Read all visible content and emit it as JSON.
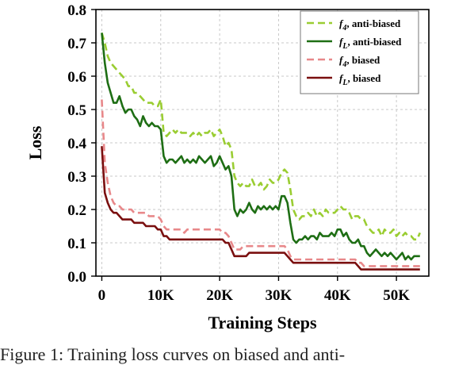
{
  "chart_data": {
    "type": "line",
    "xlabel": "Training Steps",
    "ylabel": "Loss",
    "xlim": [
      -1000,
      55500
    ],
    "ylim": [
      0,
      0.8
    ],
    "xticks": [
      0,
      10000,
      20000,
      30000,
      40000,
      50000
    ],
    "xtick_labels": [
      "0",
      "10K",
      "20K",
      "30K",
      "40K",
      "50K"
    ],
    "yticks": [
      0.0,
      0.1,
      0.2,
      0.3,
      0.4,
      0.5,
      0.6,
      0.7,
      0.8
    ],
    "ytick_labels": [
      "0.0",
      "0.1",
      "0.2",
      "0.3",
      "0.4",
      "0.5",
      "0.6",
      "0.7",
      "0.8"
    ],
    "grid": true,
    "legend_position": "top-right",
    "series": [
      {
        "name": "f4, anti-biased",
        "legend_italic": "f",
        "legend_sub": "4",
        "legend_rest": ", anti-biased",
        "color": "#9acd32",
        "dash": true,
        "x": [
          0,
          500,
          1000,
          1500,
          2000,
          2500,
          3000,
          3500,
          4000,
          4500,
          5000,
          5500,
          6000,
          6500,
          7000,
          7500,
          8000,
          8500,
          9000,
          9500,
          10000,
          10500,
          11000,
          11500,
          12000,
          12500,
          13000,
          13500,
          14000,
          14500,
          15000,
          15500,
          16000,
          16500,
          17000,
          17500,
          18000,
          18500,
          19000,
          19500,
          20000,
          20500,
          21000,
          21500,
          22000,
          22500,
          23000,
          23500,
          24000,
          24500,
          25000,
          25500,
          26000,
          26500,
          27000,
          27500,
          28000,
          28500,
          29000,
          29500,
          30000,
          30500,
          31000,
          31500,
          32000,
          32500,
          33000,
          33500,
          34000,
          34500,
          35000,
          35500,
          36000,
          36500,
          37000,
          37500,
          38000,
          38500,
          39000,
          39500,
          40000,
          40500,
          41000,
          41500,
          42000,
          42500,
          43000,
          43500,
          44000,
          44500,
          45000,
          45500,
          46000,
          46500,
          47000,
          47500,
          48000,
          48500,
          49000,
          49500,
          50000,
          50500,
          51000,
          51500,
          52000,
          52500,
          53000,
          53500,
          54000
        ],
        "y": [
          0.73,
          0.7,
          0.66,
          0.64,
          0.63,
          0.62,
          0.61,
          0.6,
          0.59,
          0.57,
          0.57,
          0.55,
          0.55,
          0.54,
          0.53,
          0.52,
          0.52,
          0.52,
          0.51,
          0.51,
          0.53,
          0.43,
          0.42,
          0.43,
          0.44,
          0.43,
          0.44,
          0.43,
          0.43,
          0.43,
          0.42,
          0.43,
          0.42,
          0.43,
          0.42,
          0.43,
          0.43,
          0.44,
          0.42,
          0.43,
          0.44,
          0.42,
          0.39,
          0.4,
          0.38,
          0.3,
          0.28,
          0.27,
          0.28,
          0.27,
          0.27,
          0.29,
          0.27,
          0.27,
          0.28,
          0.26,
          0.27,
          0.29,
          0.28,
          0.28,
          0.29,
          0.31,
          0.32,
          0.31,
          0.26,
          0.2,
          0.18,
          0.17,
          0.18,
          0.18,
          0.19,
          0.18,
          0.2,
          0.18,
          0.19,
          0.18,
          0.2,
          0.19,
          0.19,
          0.19,
          0.2,
          0.21,
          0.2,
          0.2,
          0.19,
          0.17,
          0.18,
          0.18,
          0.17,
          0.17,
          0.15,
          0.14,
          0.13,
          0.13,
          0.14,
          0.12,
          0.14,
          0.13,
          0.13,
          0.14,
          0.12,
          0.13,
          0.12,
          0.13,
          0.12,
          0.12,
          0.11,
          0.11,
          0.13
        ]
      },
      {
        "name": "fL, anti-biased",
        "legend_italic": "f",
        "legend_sub": "L",
        "legend_rest": ", anti-biased",
        "color": "#1e6e14",
        "dash": false,
        "x": [
          0,
          500,
          1000,
          1500,
          2000,
          2500,
          3000,
          3500,
          4000,
          4500,
          5000,
          5500,
          6000,
          6500,
          7000,
          7500,
          8000,
          8500,
          9000,
          9500,
          10000,
          10500,
          11000,
          11500,
          12000,
          12500,
          13000,
          13500,
          14000,
          14500,
          15000,
          15500,
          16000,
          16500,
          17000,
          17500,
          18000,
          18500,
          19000,
          19500,
          20000,
          20500,
          21000,
          21500,
          22000,
          22500,
          23000,
          23500,
          24000,
          24500,
          25000,
          25500,
          26000,
          26500,
          27000,
          27500,
          28000,
          28500,
          29000,
          29500,
          30000,
          30500,
          31000,
          31500,
          32000,
          32500,
          33000,
          33500,
          34000,
          34500,
          35000,
          35500,
          36000,
          36500,
          37000,
          37500,
          38000,
          38500,
          39000,
          39500,
          40000,
          40500,
          41000,
          41500,
          42000,
          42500,
          43000,
          43500,
          44000,
          44500,
          45000,
          45500,
          46000,
          46500,
          47000,
          47500,
          48000,
          48500,
          49000,
          49500,
          50000,
          50500,
          51000,
          51500,
          52000,
          52500,
          53000,
          53500,
          54000
        ],
        "y": [
          0.73,
          0.64,
          0.58,
          0.55,
          0.52,
          0.52,
          0.54,
          0.51,
          0.49,
          0.5,
          0.5,
          0.48,
          0.47,
          0.45,
          0.48,
          0.46,
          0.45,
          0.46,
          0.45,
          0.45,
          0.44,
          0.36,
          0.34,
          0.35,
          0.35,
          0.34,
          0.35,
          0.36,
          0.34,
          0.35,
          0.34,
          0.35,
          0.34,
          0.36,
          0.35,
          0.34,
          0.35,
          0.36,
          0.33,
          0.34,
          0.36,
          0.34,
          0.32,
          0.33,
          0.3,
          0.2,
          0.18,
          0.2,
          0.19,
          0.2,
          0.22,
          0.2,
          0.19,
          0.21,
          0.2,
          0.21,
          0.2,
          0.21,
          0.2,
          0.21,
          0.2,
          0.24,
          0.24,
          0.22,
          0.16,
          0.11,
          0.1,
          0.11,
          0.11,
          0.12,
          0.11,
          0.12,
          0.12,
          0.11,
          0.13,
          0.12,
          0.12,
          0.12,
          0.13,
          0.12,
          0.14,
          0.14,
          0.12,
          0.13,
          0.11,
          0.1,
          0.1,
          0.11,
          0.09,
          0.09,
          0.07,
          0.06,
          0.07,
          0.08,
          0.07,
          0.06,
          0.07,
          0.06,
          0.07,
          0.06,
          0.05,
          0.06,
          0.07,
          0.05,
          0.06,
          0.05,
          0.06,
          0.06,
          0.06
        ]
      },
      {
        "name": "f4, biased",
        "legend_italic": "f",
        "legend_sub": "4",
        "legend_rest": ", biased",
        "color": "#e8888a",
        "dash": true,
        "x": [
          0,
          500,
          1000,
          1500,
          2000,
          2500,
          3000,
          3500,
          4000,
          4500,
          5000,
          5500,
          6000,
          6500,
          7000,
          7500,
          8000,
          8500,
          9000,
          9500,
          10000,
          10500,
          11000,
          11500,
          12000,
          12500,
          13000,
          13500,
          14000,
          14500,
          15000,
          15500,
          16000,
          16500,
          17000,
          17500,
          18000,
          18500,
          19000,
          19500,
          20000,
          20500,
          21000,
          21500,
          22000,
          22500,
          23000,
          23500,
          24000,
          24500,
          25000,
          25500,
          26000,
          26500,
          27000,
          27500,
          28000,
          28500,
          29000,
          29500,
          30000,
          30500,
          31000,
          31500,
          32000,
          32500,
          33000,
          33500,
          34000,
          34500,
          35000,
          35500,
          36000,
          36500,
          37000,
          37500,
          38000,
          38500,
          39000,
          39500,
          40000,
          40500,
          41000,
          41500,
          42000,
          42500,
          43000,
          43500,
          44000,
          44500,
          45000,
          45500,
          46000,
          46500,
          47000,
          47500,
          48000,
          48500,
          49000,
          49500,
          50000,
          50500,
          51000,
          51500,
          52000,
          52500,
          53000,
          53500,
          54000
        ],
        "y": [
          0.53,
          0.34,
          0.28,
          0.24,
          0.22,
          0.21,
          0.21,
          0.2,
          0.2,
          0.2,
          0.2,
          0.19,
          0.19,
          0.19,
          0.19,
          0.19,
          0.18,
          0.18,
          0.18,
          0.18,
          0.17,
          0.15,
          0.14,
          0.14,
          0.14,
          0.14,
          0.14,
          0.14,
          0.13,
          0.14,
          0.14,
          0.14,
          0.14,
          0.14,
          0.14,
          0.14,
          0.14,
          0.14,
          0.14,
          0.14,
          0.14,
          0.13,
          0.13,
          0.12,
          0.1,
          0.08,
          0.08,
          0.08,
          0.09,
          0.09,
          0.09,
          0.09,
          0.09,
          0.09,
          0.09,
          0.09,
          0.09,
          0.09,
          0.09,
          0.09,
          0.09,
          0.09,
          0.09,
          0.08,
          0.06,
          0.05,
          0.05,
          0.05,
          0.05,
          0.05,
          0.05,
          0.05,
          0.05,
          0.05,
          0.05,
          0.05,
          0.05,
          0.05,
          0.05,
          0.05,
          0.05,
          0.05,
          0.05,
          0.05,
          0.05,
          0.05,
          0.05,
          0.04,
          0.04,
          0.03,
          0.03,
          0.03,
          0.03,
          0.03,
          0.03,
          0.03,
          0.03,
          0.03,
          0.03,
          0.03,
          0.03,
          0.03,
          0.03,
          0.03,
          0.03,
          0.03,
          0.03,
          0.03,
          0.03
        ]
      },
      {
        "name": "fL, biased",
        "legend_italic": "f",
        "legend_sub": "L",
        "legend_rest": ", biased",
        "color": "#7a0f0f",
        "dash": false,
        "x": [
          0,
          500,
          1000,
          1500,
          2000,
          2500,
          3000,
          3500,
          4000,
          4500,
          5000,
          5500,
          6000,
          6500,
          7000,
          7500,
          8000,
          8500,
          9000,
          9500,
          10000,
          10500,
          11000,
          11500,
          12000,
          12500,
          13000,
          13500,
          14000,
          14500,
          15000,
          15500,
          16000,
          16500,
          17000,
          17500,
          18000,
          18500,
          19000,
          19500,
          20000,
          20500,
          21000,
          21500,
          22000,
          22500,
          23000,
          23500,
          24000,
          24500,
          25000,
          25500,
          26000,
          26500,
          27000,
          27500,
          28000,
          28500,
          29000,
          29500,
          30000,
          30500,
          31000,
          31500,
          32000,
          32500,
          33000,
          33500,
          34000,
          34500,
          35000,
          35500,
          36000,
          36500,
          37000,
          37500,
          38000,
          38500,
          39000,
          39500,
          40000,
          40500,
          41000,
          41500,
          42000,
          42500,
          43000,
          43500,
          44000,
          44500,
          45000,
          45500,
          46000,
          46500,
          47000,
          47500,
          48000,
          48500,
          49000,
          49500,
          50000,
          50500,
          51000,
          51500,
          52000,
          52500,
          53000,
          53500,
          54000
        ],
        "y": [
          0.39,
          0.25,
          0.22,
          0.2,
          0.19,
          0.19,
          0.18,
          0.17,
          0.17,
          0.17,
          0.17,
          0.16,
          0.16,
          0.16,
          0.16,
          0.15,
          0.15,
          0.15,
          0.15,
          0.14,
          0.14,
          0.12,
          0.12,
          0.11,
          0.11,
          0.11,
          0.11,
          0.11,
          0.11,
          0.11,
          0.11,
          0.11,
          0.11,
          0.11,
          0.11,
          0.11,
          0.11,
          0.11,
          0.11,
          0.11,
          0.11,
          0.11,
          0.1,
          0.1,
          0.08,
          0.06,
          0.06,
          0.06,
          0.06,
          0.06,
          0.07,
          0.07,
          0.07,
          0.07,
          0.07,
          0.07,
          0.07,
          0.07,
          0.07,
          0.07,
          0.07,
          0.07,
          0.07,
          0.06,
          0.05,
          0.04,
          0.04,
          0.04,
          0.04,
          0.04,
          0.04,
          0.04,
          0.04,
          0.04,
          0.04,
          0.04,
          0.04,
          0.04,
          0.04,
          0.04,
          0.04,
          0.04,
          0.04,
          0.04,
          0.04,
          0.04,
          0.04,
          0.03,
          0.02,
          0.02,
          0.02,
          0.02,
          0.02,
          0.02,
          0.02,
          0.02,
          0.02,
          0.02,
          0.02,
          0.02,
          0.02,
          0.02,
          0.02,
          0.02,
          0.02,
          0.02,
          0.02,
          0.02,
          0.02
        ]
      }
    ]
  },
  "caption": "Figure 1: Training loss curves on biased and anti-"
}
